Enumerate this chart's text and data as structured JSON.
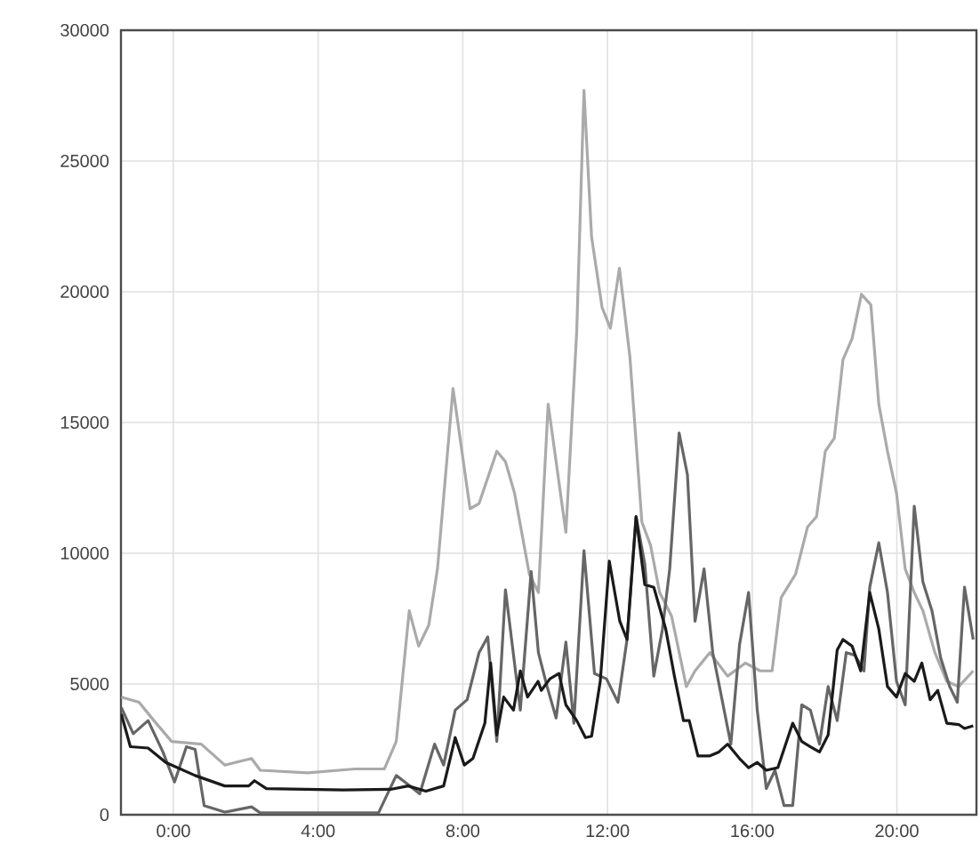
{
  "chart_data": {
    "type": "line",
    "xlim": [
      -1.45,
      22.2
    ],
    "ylim": [
      0,
      30000
    ],
    "xticks": [
      {
        "value": 0,
        "label": "0:00"
      },
      {
        "value": 4,
        "label": "4:00"
      },
      {
        "value": 8,
        "label": "8:00"
      },
      {
        "value": 12,
        "label": "12:00"
      },
      {
        "value": 16,
        "label": "16:00"
      },
      {
        "value": 20,
        "label": "20:00"
      }
    ],
    "yticks": [
      0,
      5000,
      10000,
      15000,
      20000,
      25000,
      30000
    ],
    "grid": true,
    "series": [
      {
        "color": "#aaaaaa",
        "x": [
          -1.44,
          -0.95,
          -0.54,
          -0.05,
          0.77,
          1.42,
          2.16,
          2.4,
          3.71,
          5.02,
          5.83,
          6.16,
          6.52,
          6.78,
          7.06,
          7.3,
          7.73,
          8.2,
          8.45,
          8.94,
          9.18,
          9.43,
          9.84,
          10.09,
          10.36,
          10.85,
          11.15,
          11.35,
          11.56,
          11.85,
          12.08,
          12.33,
          12.62,
          12.95,
          13.19,
          13.44,
          13.77,
          14.18,
          14.42,
          14.83,
          15.32,
          15.81,
          16.22,
          16.55,
          16.8,
          17.2,
          17.53,
          17.78,
          18.02,
          18.27,
          18.51,
          18.76,
          19.02,
          19.28,
          19.5,
          19.74,
          19.99,
          20.23,
          20.48,
          20.72,
          21.05,
          21.38,
          21.71,
          22.11
        ],
        "values": [
          4500,
          4300,
          3600,
          2800,
          2700,
          1900,
          2150,
          1700,
          1600,
          1750,
          1750,
          2800,
          7800,
          6450,
          7250,
          9400,
          16300,
          11700,
          11900,
          13900,
          13500,
          12300,
          9200,
          8500,
          15700,
          10800,
          18500,
          27700,
          22100,
          19400,
          18600,
          20900,
          17500,
          11200,
          10300,
          8500,
          7600,
          4900,
          5500,
          6200,
          5300,
          5800,
          5500,
          5500,
          8300,
          9200,
          11000,
          11400,
          13900,
          14400,
          17400,
          18200,
          19900,
          19500,
          15700,
          13900,
          12300,
          9400,
          8500,
          7800,
          6200,
          5100,
          4900,
          5500
        ]
      },
      {
        "color": "#666666",
        "x": [
          -1.44,
          -1.11,
          -0.7,
          -0.29,
          0.03,
          0.36,
          0.6,
          0.85,
          1.42,
          2.16,
          2.4,
          5.67,
          6.16,
          6.4,
          6.81,
          7.22,
          7.47,
          7.79,
          8.12,
          8.45,
          8.69,
          8.94,
          9.18,
          9.59,
          9.89,
          10.09,
          10.33,
          10.58,
          10.85,
          11.07,
          11.35,
          11.64,
          11.97,
          12.29,
          12.54,
          12.79,
          13.03,
          13.28,
          13.52,
          13.72,
          13.98,
          14.21,
          14.42,
          14.67,
          14.91,
          15.41,
          15.65,
          15.9,
          16.14,
          16.39,
          16.63,
          16.88,
          17.12,
          17.37,
          17.61,
          17.86,
          18.1,
          18.35,
          18.6,
          18.84,
          19.09,
          19.25,
          19.5,
          19.74,
          19.99,
          20.23,
          20.48,
          20.72,
          20.97,
          21.21,
          21.46,
          21.67,
          21.87,
          22.11
        ],
        "values": [
          4100,
          3100,
          3600,
          2400,
          1250,
          2600,
          2500,
          350,
          100,
          300,
          70,
          70,
          1500,
          1250,
          800,
          2700,
          1900,
          4000,
          4400,
          6200,
          6800,
          2800,
          8600,
          4000,
          9300,
          6200,
          4900,
          3700,
          6600,
          3500,
          10100,
          5400,
          5200,
          4300,
          6700,
          11400,
          9600,
          5300,
          7100,
          9400,
          14600,
          13000,
          7400,
          9400,
          6200,
          2700,
          6500,
          8500,
          4000,
          1000,
          1700,
          350,
          350,
          4200,
          4000,
          2700,
          4900,
          3600,
          6200,
          6100,
          5500,
          8700,
          10400,
          8500,
          5100,
          4200,
          11800,
          8900,
          7800,
          6000,
          4900,
          4300,
          8700,
          6700
        ]
      },
      {
        "color": "#1a1a1a",
        "x": [
          -1.44,
          -1.19,
          -0.7,
          -0.21,
          0.6,
          1.42,
          2.08,
          2.24,
          2.57,
          4.7,
          6.0,
          6.49,
          6.98,
          7.47,
          7.79,
          8.04,
          8.28,
          8.61,
          8.77,
          8.94,
          9.13,
          9.4,
          9.59,
          9.79,
          10.08,
          10.17,
          10.41,
          10.66,
          10.85,
          11.15,
          11.39,
          11.56,
          11.8,
          12.05,
          12.34,
          12.54,
          12.79,
          13.03,
          13.28,
          13.61,
          13.85,
          14.1,
          14.26,
          14.5,
          14.83,
          15.08,
          15.32,
          15.65,
          15.9,
          16.14,
          16.39,
          16.71,
          17.12,
          17.37,
          17.61,
          17.86,
          18.1,
          18.35,
          18.51,
          18.76,
          19.0,
          19.25,
          19.5,
          19.74,
          19.99,
          20.23,
          20.48,
          20.69,
          20.92,
          21.13,
          21.38,
          21.71,
          21.87,
          22.11
        ],
        "values": [
          3850,
          2600,
          2550,
          2000,
          1500,
          1100,
          1100,
          1300,
          1000,
          950,
          970,
          1100,
          900,
          1100,
          2950,
          1900,
          2150,
          3500,
          5800,
          3050,
          4500,
          4000,
          5500,
          4500,
          5100,
          4750,
          5200,
          5400,
          4200,
          3600,
          2950,
          3000,
          5100,
          9700,
          7400,
          6700,
          11400,
          8800,
          8700,
          7100,
          5300,
          3600,
          3600,
          2250,
          2250,
          2400,
          2700,
          2150,
          1800,
          2000,
          1700,
          1800,
          3500,
          2800,
          2600,
          2400,
          3050,
          6300,
          6700,
          6450,
          5500,
          8500,
          7100,
          4900,
          4500,
          5400,
          5100,
          5800,
          4400,
          4750,
          3500,
          3450,
          3300,
          3400
        ]
      }
    ]
  }
}
